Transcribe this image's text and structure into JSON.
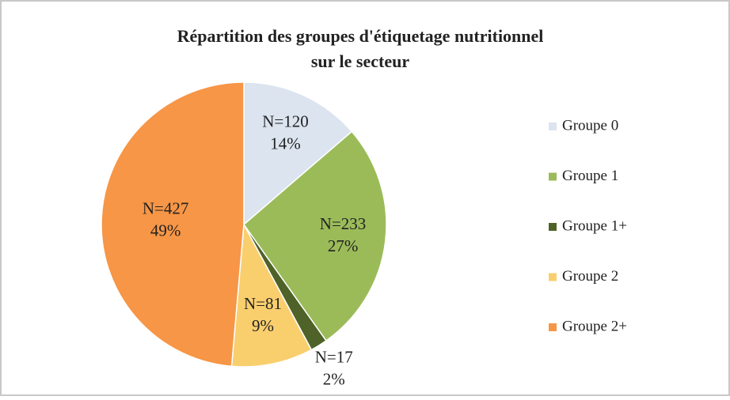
{
  "chart_data": {
    "type": "pie",
    "title": "Répartition des groupes d'étiquetage nutritionnel",
    "subtitle": "sur le secteur",
    "categories": [
      "Groupe 0",
      "Groupe 1",
      "Groupe 1+",
      "Groupe 2",
      "Groupe 2+"
    ],
    "values": [
      120,
      233,
      17,
      81,
      427
    ],
    "value_labels": [
      "N=120",
      "N=233",
      "N=17",
      "N=81",
      "N=427"
    ],
    "percentages": [
      14,
      27,
      2,
      9,
      49
    ],
    "percentage_labels": [
      "14%",
      "27%",
      "2%",
      "9%",
      "49%"
    ],
    "colors": [
      "#dbe4ef",
      "#9bbb59",
      "#4f6228",
      "#f9cf6e",
      "#f79646"
    ],
    "legend": "right"
  }
}
